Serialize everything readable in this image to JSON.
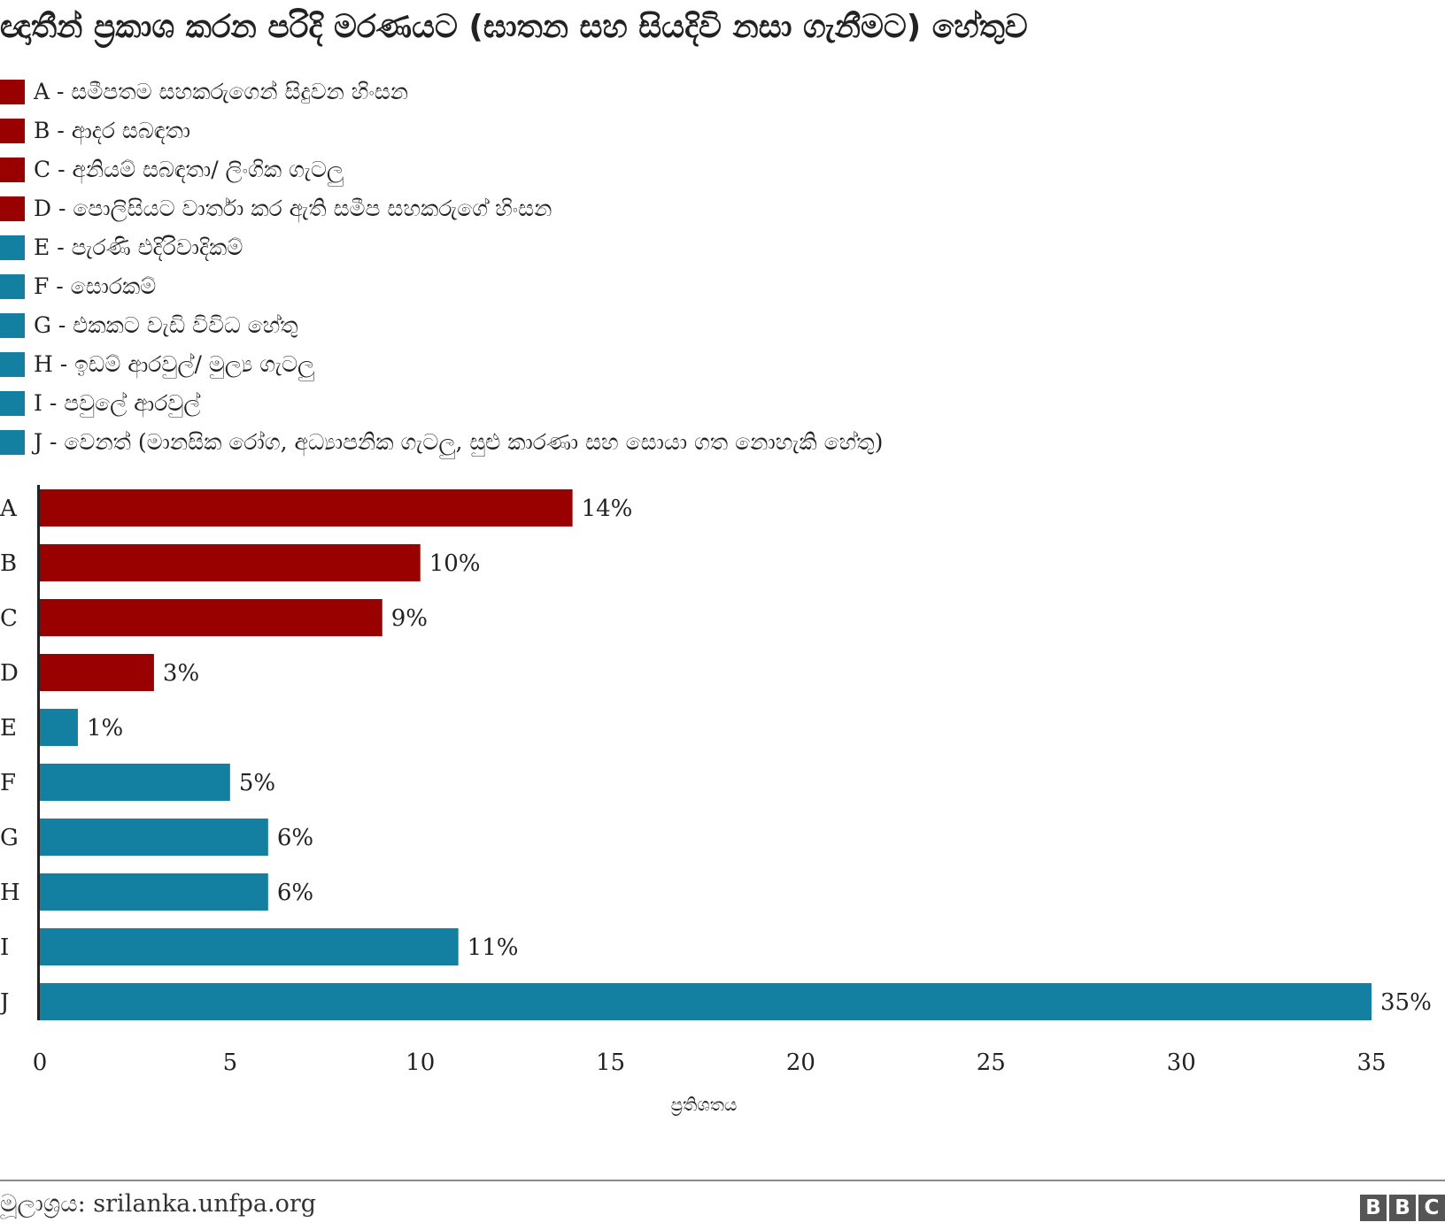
{
  "title": "ඥාතීන් ප්‍රකාශ කරන පරිදි මරණයට (ඝාතන සහ සියදිවි නසා ගැනීමට) හේතුව",
  "legend": [
    {
      "label": "A - සමීපතම සහකරුගෙන් සිදුවන හිංසන",
      "color": "#990000"
    },
    {
      "label": "B - ආදර සබඳතා",
      "color": "#990000"
    },
    {
      "label": "C - අනියම් සබඳතා/ ලිංගික ගැටලු",
      "color": "#990000"
    },
    {
      "label": "D - පොලිසියට වාර්තා කර ඇති සමීප සහකරුගේ හිංසන",
      "color": "#990000"
    },
    {
      "label": "E - පැරණි එදිරිවාදිකම්",
      "color": "#1380a1"
    },
    {
      "label": "F - සොරකම්",
      "color": "#1380a1"
    },
    {
      "label": "G - එකකට වැඩි විවිධ හේතු",
      "color": "#1380a1"
    },
    {
      "label": "H - ඉඩම් ආරවුල්/ මුල්‍ය ගැටලු",
      "color": "#1380a1"
    },
    {
      "label": "I - පවුලේ ආරවුල්",
      "color": "#1380a1"
    },
    {
      "label": "J - වෙනත් (මානසික රෝග, අධ්‍යාපනික ගැටලු, සුළු කාරණා සහ සොයා ගත නොහැකි හේතු)",
      "color": "#1380a1"
    }
  ],
  "chart_data": {
    "type": "bar",
    "orientation": "horizontal",
    "categories": [
      "A",
      "B",
      "C",
      "D",
      "E",
      "F",
      "G",
      "H",
      "I",
      "J"
    ],
    "values": [
      14,
      10,
      9,
      3,
      1,
      5,
      6,
      6,
      11,
      35
    ],
    "data_labels": [
      "14%",
      "10%",
      "9%",
      "3%",
      "1%",
      "5%",
      "6%",
      "6%",
      "11%",
      "35%"
    ],
    "colors": [
      "#990000",
      "#990000",
      "#990000",
      "#990000",
      "#1380a1",
      "#1380a1",
      "#1380a1",
      "#1380a1",
      "#1380a1",
      "#1380a1"
    ],
    "xlim": [
      0,
      35
    ],
    "xticks": [
      0,
      5,
      10,
      15,
      20,
      25,
      30,
      35
    ],
    "xlabel": "ප්‍රතිශතය",
    "ylabel": "",
    "grid": false,
    "legend_position": "top-left"
  },
  "footer": {
    "source": "මූලාශ්‍රය: srilanka.unfpa.org",
    "logo_letters": [
      "B",
      "B",
      "C"
    ]
  }
}
